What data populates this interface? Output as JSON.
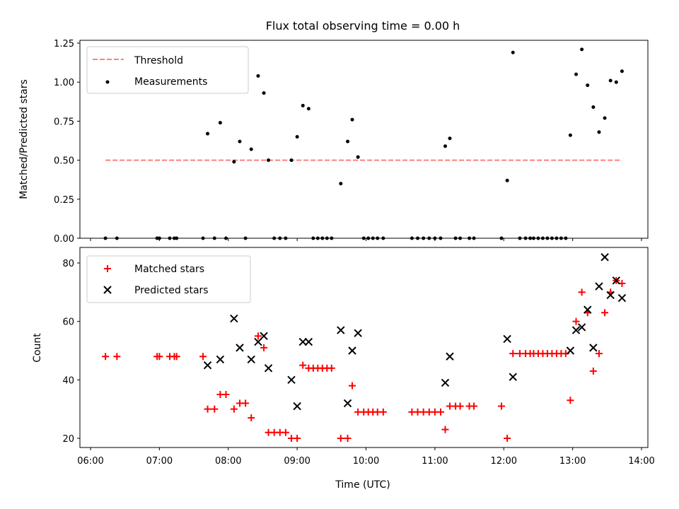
{
  "chart_data": [
    {
      "type": "scatter",
      "title": "Flux total observing time = 0.00 h",
      "xlabel": "",
      "ylabel": "Matched/Predicted stars",
      "xlim": [
        "06:00",
        "14:00"
      ],
      "ylim": [
        0,
        1.25
      ],
      "x_tick_labels": [],
      "y_tick_labels": [
        "0.00",
        "0.25",
        "0.50",
        "0.75",
        "1.00",
        "1.25"
      ],
      "legend_position": "top-left",
      "threshold": {
        "name": "Threshold",
        "value": 0.5,
        "x_range": [
          "06:13",
          "13:43"
        ],
        "color": "#ff7f7f",
        "style": "dashed"
      },
      "series": [
        {
          "name": "Measurements",
          "color": "#000000",
          "points": [
            [
              "06:13",
              0
            ],
            [
              "06:23",
              0
            ],
            [
              "06:58",
              0
            ],
            [
              "07:00",
              0
            ],
            [
              "07:09",
              0
            ],
            [
              "07:13",
              0
            ],
            [
              "07:15",
              0
            ],
            [
              "07:38",
              0
            ],
            [
              "07:42",
              0.67
            ],
            [
              "07:48",
              0
            ],
            [
              "07:53",
              0.74
            ],
            [
              "07:58",
              0
            ],
            [
              "08:05",
              0.49
            ],
            [
              "08:10",
              0.62
            ],
            [
              "08:15",
              0
            ],
            [
              "08:20",
              0.57
            ],
            [
              "08:26",
              1.04
            ],
            [
              "08:31",
              0.93
            ],
            [
              "08:35",
              0.5
            ],
            [
              "08:40",
              0
            ],
            [
              "08:45",
              0
            ],
            [
              "08:50",
              0
            ],
            [
              "08:55",
              0.5
            ],
            [
              "09:00",
              0.65
            ],
            [
              "09:05",
              0.85
            ],
            [
              "09:10",
              0.83
            ],
            [
              "09:14",
              0
            ],
            [
              "09:18",
              0
            ],
            [
              "09:22",
              0
            ],
            [
              "09:26",
              0
            ],
            [
              "09:30",
              0
            ],
            [
              "09:38",
              0.35
            ],
            [
              "09:44",
              0.62
            ],
            [
              "09:48",
              0.76
            ],
            [
              "09:53",
              0.52
            ],
            [
              "09:58",
              0
            ],
            [
              "10:02",
              0
            ],
            [
              "10:06",
              0
            ],
            [
              "10:10",
              0
            ],
            [
              "10:15",
              0
            ],
            [
              "10:40",
              0
            ],
            [
              "10:45",
              0
            ],
            [
              "10:50",
              0
            ],
            [
              "10:55",
              0
            ],
            [
              "11:00",
              0
            ],
            [
              "11:05",
              0
            ],
            [
              "11:09",
              0.59
            ],
            [
              "11:13",
              0.64
            ],
            [
              "11:18",
              0
            ],
            [
              "11:22",
              0
            ],
            [
              "11:30",
              0
            ],
            [
              "11:34",
              0
            ],
            [
              "11:58",
              0
            ],
            [
              "12:03",
              0.37
            ],
            [
              "12:08",
              1.19
            ],
            [
              "12:14",
              0
            ],
            [
              "12:19",
              0
            ],
            [
              "12:23",
              0
            ],
            [
              "12:26",
              0
            ],
            [
              "12:30",
              0
            ],
            [
              "12:34",
              0
            ],
            [
              "12:38",
              0
            ],
            [
              "12:42",
              0
            ],
            [
              "12:46",
              0
            ],
            [
              "12:50",
              0
            ],
            [
              "12:54",
              0
            ],
            [
              "12:58",
              0.66
            ],
            [
              "13:03",
              1.05
            ],
            [
              "13:08",
              1.21
            ],
            [
              "13:13",
              0.98
            ],
            [
              "13:18",
              0.84
            ],
            [
              "13:23",
              0.68
            ],
            [
              "13:28",
              0.77
            ],
            [
              "13:33",
              1.01
            ],
            [
              "13:38",
              1.0
            ],
            [
              "13:43",
              1.07
            ]
          ]
        }
      ]
    },
    {
      "type": "scatter",
      "title": "",
      "xlabel": "Time (UTC)",
      "ylabel": "Count",
      "xlim": [
        "06:00",
        "14:00"
      ],
      "ylim": [
        17,
        86
      ],
      "x_tick_labels": [
        "06:00",
        "07:00",
        "08:00",
        "09:00",
        "10:00",
        "11:00",
        "12:00",
        "13:00",
        "14:00"
      ],
      "y_tick_labels": [
        "20",
        "40",
        "60",
        "80"
      ],
      "legend_position": "top-left",
      "series": [
        {
          "name": "Matched stars",
          "color": "#ff0000",
          "marker": "+",
          "points": [
            [
              "06:13",
              48
            ],
            [
              "06:23",
              48
            ],
            [
              "06:58",
              48
            ],
            [
              "07:00",
              48
            ],
            [
              "07:09",
              48
            ],
            [
              "07:13",
              48
            ],
            [
              "07:15",
              48
            ],
            [
              "07:38",
              48
            ],
            [
              "07:42",
              30
            ],
            [
              "07:48",
              30
            ],
            [
              "07:53",
              35
            ],
            [
              "07:58",
              35
            ],
            [
              "08:05",
              30
            ],
            [
              "08:10",
              32
            ],
            [
              "08:15",
              32
            ],
            [
              "08:20",
              27
            ],
            [
              "08:26",
              55
            ],
            [
              "08:31",
              51
            ],
            [
              "08:35",
              22
            ],
            [
              "08:40",
              22
            ],
            [
              "08:45",
              22
            ],
            [
              "08:50",
              22
            ],
            [
              "08:55",
              20
            ],
            [
              "09:00",
              20
            ],
            [
              "09:05",
              45
            ],
            [
              "09:10",
              44
            ],
            [
              "09:14",
              44
            ],
            [
              "09:18",
              44
            ],
            [
              "09:22",
              44
            ],
            [
              "09:26",
              44
            ],
            [
              "09:30",
              44
            ],
            [
              "09:38",
              20
            ],
            [
              "09:44",
              20
            ],
            [
              "09:48",
              38
            ],
            [
              "09:53",
              29
            ],
            [
              "09:58",
              29
            ],
            [
              "10:02",
              29
            ],
            [
              "10:06",
              29
            ],
            [
              "10:10",
              29
            ],
            [
              "10:15",
              29
            ],
            [
              "10:40",
              29
            ],
            [
              "10:45",
              29
            ],
            [
              "10:50",
              29
            ],
            [
              "10:55",
              29
            ],
            [
              "11:00",
              29
            ],
            [
              "11:05",
              29
            ],
            [
              "11:09",
              23
            ],
            [
              "11:13",
              31
            ],
            [
              "11:18",
              31
            ],
            [
              "11:22",
              31
            ],
            [
              "11:30",
              31
            ],
            [
              "11:34",
              31
            ],
            [
              "11:58",
              31
            ],
            [
              "12:03",
              20
            ],
            [
              "12:08",
              49
            ],
            [
              "12:14",
              49
            ],
            [
              "12:19",
              49
            ],
            [
              "12:23",
              49
            ],
            [
              "12:26",
              49
            ],
            [
              "12:30",
              49
            ],
            [
              "12:34",
              49
            ],
            [
              "12:38",
              49
            ],
            [
              "12:42",
              49
            ],
            [
              "12:46",
              49
            ],
            [
              "12:50",
              49
            ],
            [
              "12:54",
              49
            ],
            [
              "12:58",
              33
            ],
            [
              "13:03",
              60
            ],
            [
              "13:08",
              70
            ],
            [
              "13:13",
              63
            ],
            [
              "13:18",
              43
            ],
            [
              "13:23",
              49
            ],
            [
              "13:28",
              63
            ],
            [
              "13:33",
              70
            ],
            [
              "13:38",
              74
            ],
            [
              "13:43",
              73
            ]
          ]
        },
        {
          "name": "Predicted stars",
          "color": "#000000",
          "marker": "x",
          "points": [
            [
              "07:42",
              45
            ],
            [
              "07:53",
              47
            ],
            [
              "08:05",
              61
            ],
            [
              "08:10",
              51
            ],
            [
              "08:20",
              47
            ],
            [
              "08:26",
              53
            ],
            [
              "08:31",
              55
            ],
            [
              "08:35",
              44
            ],
            [
              "08:55",
              40
            ],
            [
              "09:00",
              31
            ],
            [
              "09:05",
              53
            ],
            [
              "09:10",
              53
            ],
            [
              "09:38",
              57
            ],
            [
              "09:44",
              32
            ],
            [
              "09:48",
              50
            ],
            [
              "09:53",
              56
            ],
            [
              "11:09",
              39
            ],
            [
              "11:13",
              48
            ],
            [
              "12:03",
              54
            ],
            [
              "12:08",
              41
            ],
            [
              "12:58",
              50
            ],
            [
              "13:03",
              57
            ],
            [
              "13:08",
              58
            ],
            [
              "13:13",
              64
            ],
            [
              "13:18",
              51
            ],
            [
              "13:23",
              72
            ],
            [
              "13:28",
              82
            ],
            [
              "13:33",
              69
            ],
            [
              "13:38",
              74
            ],
            [
              "13:43",
              68
            ]
          ]
        }
      ]
    }
  ]
}
